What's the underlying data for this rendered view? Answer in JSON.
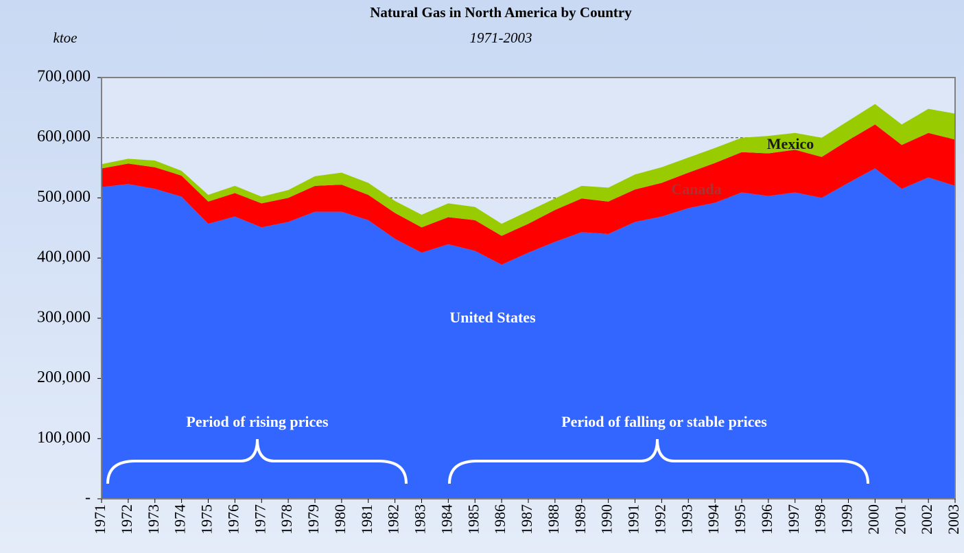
{
  "chart_data": {
    "type": "stacked-area",
    "title": "Natural Gas in North America by Country",
    "subtitle": "1971-2003",
    "y_label": "ktoe",
    "categories": [
      "1971",
      "1972",
      "1973",
      "1974",
      "1975",
      "1976",
      "1977",
      "1978",
      "1979",
      "1980",
      "1981",
      "1982",
      "1983",
      "1984",
      "1985",
      "1986",
      "1987",
      "1988",
      "1989",
      "1990",
      "1991",
      "1992",
      "1993",
      "1994",
      "1995",
      "1996",
      "1997",
      "1998",
      "1999",
      "2000",
      "2001",
      "2002",
      "2003"
    ],
    "series": [
      {
        "name": "United States",
        "color": "#3366ff",
        "values": [
          518000,
          523000,
          515000,
          502000,
          457000,
          469000,
          451000,
          460000,
          477000,
          477000,
          463000,
          432000,
          409000,
          423000,
          412000,
          389000,
          409000,
          427000,
          443000,
          440000,
          460000,
          469000,
          483000,
          492000,
          509000,
          503000,
          509000,
          500000,
          525000,
          549000,
          515000,
          534000,
          520000
        ]
      },
      {
        "name": "Canada",
        "color": "#ff0000",
        "values": [
          31000,
          34000,
          36000,
          35000,
          37000,
          39000,
          40000,
          40000,
          43000,
          45000,
          42000,
          43000,
          42000,
          45000,
          51000,
          48000,
          48000,
          53000,
          56000,
          54000,
          54000,
          56000,
          59000,
          66000,
          67000,
          71000,
          71000,
          68000,
          71000,
          73000,
          73000,
          74000,
          77000
        ]
      },
      {
        "name": "Mexico",
        "color": "#99cc00",
        "values": [
          7000,
          8000,
          11000,
          8000,
          11000,
          12000,
          11000,
          13000,
          16000,
          20000,
          20000,
          20000,
          21000,
          23000,
          22000,
          20000,
          21000,
          19000,
          21000,
          23000,
          25000,
          26000,
          25000,
          25000,
          24000,
          29000,
          28000,
          32000,
          32000,
          34000,
          34000,
          40000,
          43000
        ]
      }
    ],
    "ylim": [
      0,
      700000
    ],
    "yticks": [
      {
        "value": 0,
        "label": "-"
      },
      {
        "value": 100000,
        "label": "100,000"
      },
      {
        "value": 200000,
        "label": "200,000"
      },
      {
        "value": 300000,
        "label": "300,000"
      },
      {
        "value": 400000,
        "label": "400,000"
      },
      {
        "value": 500000,
        "label": "500,000"
      },
      {
        "value": 600000,
        "label": "600,000"
      },
      {
        "value": 700000,
        "label": "700,000"
      }
    ],
    "grid": true,
    "annotations": [
      "Period of rising prices",
      "Period of falling or stable prices"
    ]
  }
}
